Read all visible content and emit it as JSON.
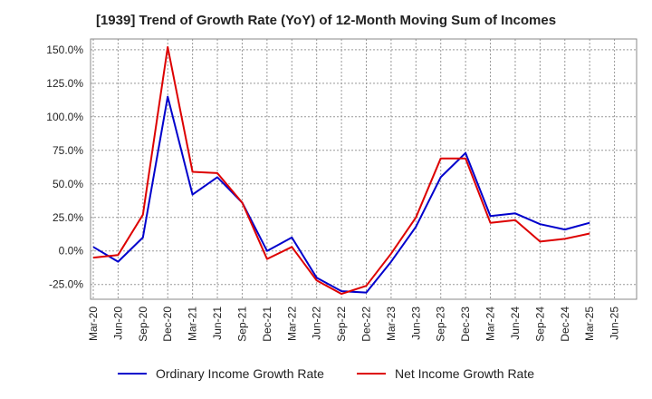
{
  "chart_data": {
    "type": "line",
    "title": "[1939]  Trend of Growth Rate (YoY) of 12-Month Moving Sum of Incomes",
    "xlabel": "",
    "ylabel": "",
    "x_ticks": [
      "Mar-20",
      "Jun-20",
      "Sep-20",
      "Dec-20",
      "Mar-21",
      "Jun-21",
      "Sep-21",
      "Dec-21",
      "Mar-22",
      "Jun-22",
      "Sep-22",
      "Dec-22",
      "Mar-23",
      "Jun-23",
      "Sep-23",
      "Dec-23",
      "Mar-24",
      "Jun-24",
      "Sep-24",
      "Dec-24",
      "Mar-25",
      "Jun-25"
    ],
    "y_ticks": [
      "150.0%",
      "125.0%",
      "100.0%",
      "75.0%",
      "50.0%",
      "25.0%",
      "0.0%",
      "-25.0%"
    ],
    "y_tick_values": [
      150,
      125,
      100,
      75,
      50,
      25,
      0,
      -25
    ],
    "ylim": [
      -36,
      158
    ],
    "grid": true,
    "legend_position": "bottom",
    "series": [
      {
        "name": "Ordinary Income Growth Rate",
        "color": "#0000cc",
        "points": [
          [
            "Mar-20",
            3
          ],
          [
            "Jun-20",
            -8
          ],
          [
            "Sep-20",
            10
          ],
          [
            "Dec-20",
            115
          ],
          [
            "Mar-21",
            42
          ],
          [
            "Jun-21",
            55
          ],
          [
            "Sep-21",
            36
          ],
          [
            "Dec-21",
            0
          ],
          [
            "Mar-22",
            10
          ],
          [
            "Jun-22",
            -20
          ],
          [
            "Sep-22",
            -30
          ],
          [
            "Dec-22",
            -31
          ],
          [
            "Mar-23",
            -8
          ],
          [
            "Jun-23",
            18
          ],
          [
            "Sep-23",
            55
          ],
          [
            "Dec-23",
            73
          ],
          [
            "Mar-24",
            26
          ],
          [
            "Jun-24",
            28
          ],
          [
            "Sep-24",
            20
          ],
          [
            "Dec-24",
            16
          ],
          [
            "Mar-25",
            21
          ]
        ]
      },
      {
        "name": "Net Income Growth Rate",
        "color": "#dd0000",
        "points": [
          [
            "Mar-20",
            -5
          ],
          [
            "Jun-20",
            -3
          ],
          [
            "Sep-20",
            27
          ],
          [
            "Dec-20",
            152
          ],
          [
            "Mar-21",
            59
          ],
          [
            "Jun-21",
            58
          ],
          [
            "Sep-21",
            36
          ],
          [
            "Dec-21",
            -6
          ],
          [
            "Mar-22",
            3
          ],
          [
            "Jun-22",
            -22
          ],
          [
            "Sep-22",
            -32
          ],
          [
            "Dec-22",
            -26
          ],
          [
            "Mar-23",
            -2
          ],
          [
            "Jun-23",
            25
          ],
          [
            "Sep-23",
            69
          ],
          [
            "Dec-23",
            69
          ],
          [
            "Mar-24",
            21
          ],
          [
            "Jun-24",
            23
          ],
          [
            "Sep-24",
            7
          ],
          [
            "Dec-24",
            9
          ],
          [
            "Mar-25",
            13
          ]
        ]
      }
    ]
  }
}
